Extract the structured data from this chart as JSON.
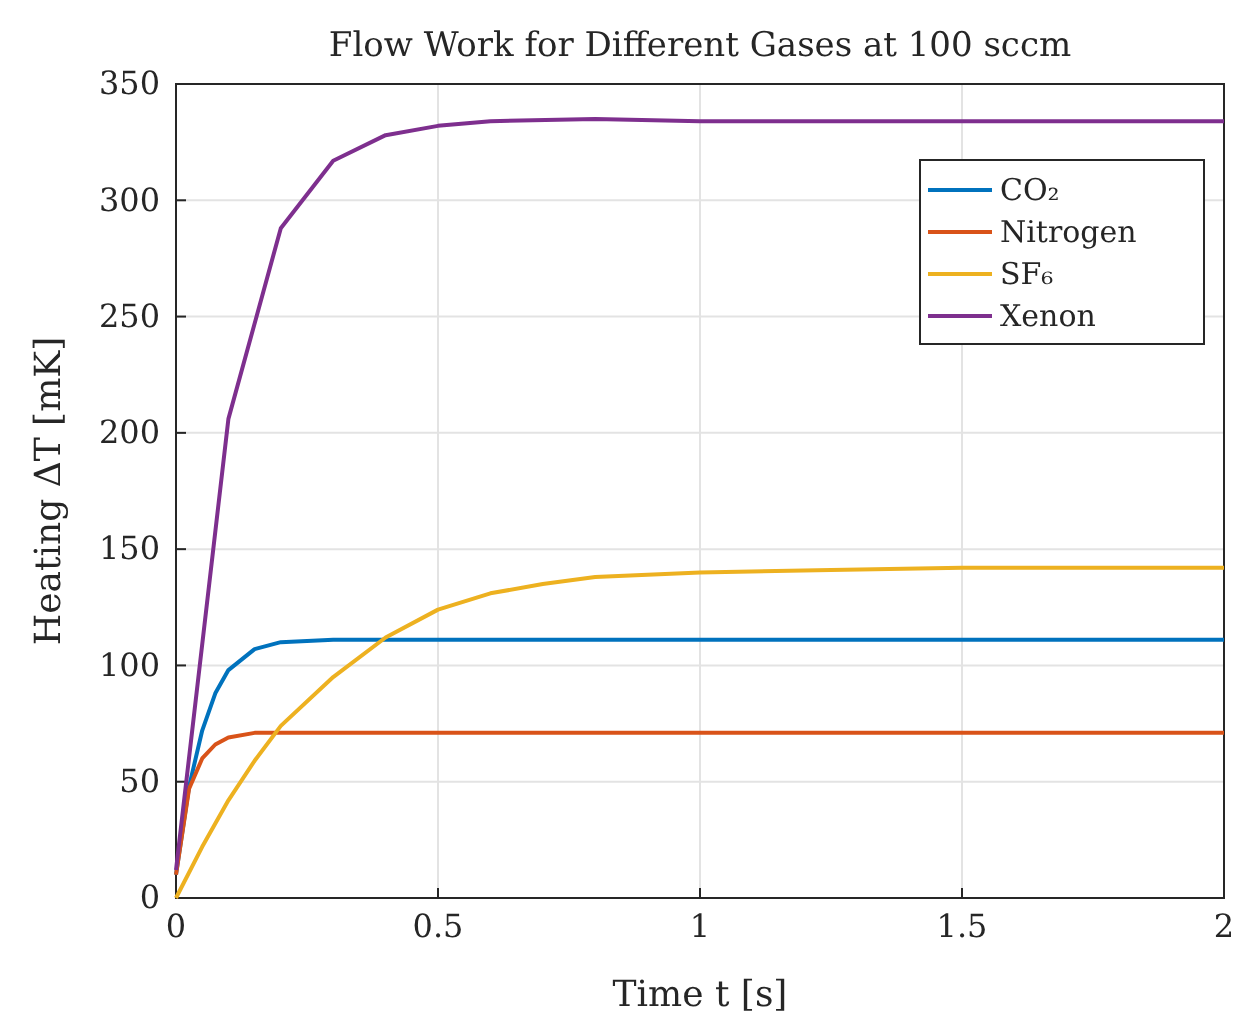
{
  "chart_data": {
    "type": "line",
    "title": "Flow Work for Different Gases at 100 sccm",
    "xlabel": "Time t [s]",
    "ylabel": "Heating ΔT [mK]",
    "xlim": [
      0,
      2
    ],
    "ylim": [
      0,
      350
    ],
    "xticks": [
      0,
      0.5,
      1,
      1.5,
      2
    ],
    "yticks": [
      0,
      50,
      100,
      150,
      200,
      250,
      300,
      350
    ],
    "grid": true,
    "legend": "top right",
    "line_style": "solid",
    "marker": "none",
    "series": [
      {
        "name": "CO₂",
        "color": "#0072bd",
        "x": [
          0,
          0.025,
          0.05,
          0.075,
          0.1,
          0.15,
          0.2,
          0.3,
          0.5,
          1,
          1.5,
          2
        ],
        "values": [
          10,
          48,
          72,
          88,
          98,
          107,
          110,
          111,
          111,
          111,
          111,
          111
        ]
      },
      {
        "name": "Nitrogen",
        "color": "#d95319",
        "x": [
          0,
          0.025,
          0.05,
          0.075,
          0.1,
          0.15,
          0.2,
          0.3,
          0.5,
          1,
          1.5,
          2
        ],
        "values": [
          10,
          47,
          60,
          66,
          69,
          71,
          71,
          71,
          71,
          71,
          71,
          71
        ]
      },
      {
        "name": "SF₆",
        "color": "#edb120",
        "x": [
          0,
          0.05,
          0.1,
          0.15,
          0.2,
          0.3,
          0.4,
          0.5,
          0.6,
          0.7,
          0.8,
          1,
          1.25,
          1.5,
          2
        ],
        "values": [
          0,
          22,
          42,
          59,
          74,
          95,
          112,
          124,
          131,
          135,
          138,
          140,
          141,
          142,
          142
        ]
      },
      {
        "name": "Xenon",
        "color": "#7e2f8e",
        "x": [
          0,
          0.1,
          0.2,
          0.3,
          0.4,
          0.5,
          0.6,
          0.8,
          1,
          1.5,
          2
        ],
        "values": [
          12,
          206,
          288,
          317,
          328,
          332,
          334,
          335,
          334,
          334,
          334
        ]
      }
    ]
  }
}
